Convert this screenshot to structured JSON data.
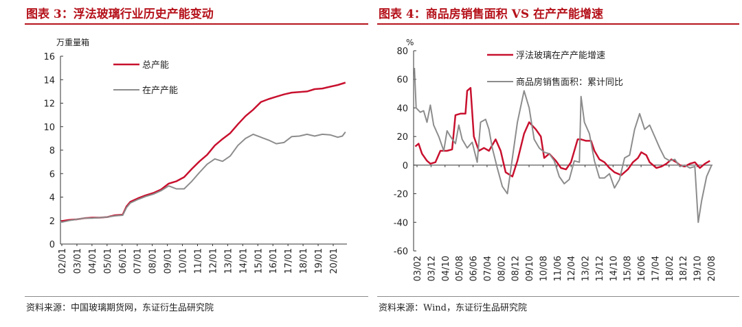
{
  "left": {
    "title": "图表 3：浮法玻璃行业历史产能变动",
    "source": "资料来源：中国玻璃期货网，东证衍生品研究院",
    "chart_data": {
      "type": "line",
      "ylabel": "万重量箱",
      "ylim": [
        0,
        16
      ],
      "yticks": [
        0,
        2,
        4,
        6,
        8,
        10,
        12,
        14,
        16
      ],
      "xlabels": [
        "02/01",
        "03/01",
        "04/01",
        "05/01",
        "06/01",
        "07/01",
        "08/01",
        "09/01",
        "10/01",
        "11/01",
        "12/01",
        "13/01",
        "14/01",
        "15/01",
        "16/01",
        "17/01",
        "18/01",
        "19/01",
        "20/01"
      ],
      "legend_position": "top-left",
      "series": [
        {
          "name": "总产能",
          "color": "#c8102e",
          "points": [
            [
              2002.0,
              1.95
            ],
            [
              2002.5,
              2.05
            ],
            [
              2003.0,
              2.1
            ],
            [
              2003.5,
              2.2
            ],
            [
              2004.0,
              2.25
            ],
            [
              2004.5,
              2.25
            ],
            [
              2005.0,
              2.3
            ],
            [
              2005.5,
              2.45
            ],
            [
              2006.0,
              2.5
            ],
            [
              2006.25,
              3.2
            ],
            [
              2006.5,
              3.6
            ],
            [
              2007.0,
              3.9
            ],
            [
              2007.5,
              4.15
            ],
            [
              2008.0,
              4.35
            ],
            [
              2008.5,
              4.65
            ],
            [
              2009.0,
              5.15
            ],
            [
              2009.5,
              5.35
            ],
            [
              2010.0,
              5.7
            ],
            [
              2010.5,
              6.4
            ],
            [
              2011.0,
              7.05
            ],
            [
              2011.5,
              7.6
            ],
            [
              2012.0,
              8.4
            ],
            [
              2012.5,
              8.95
            ],
            [
              2013.0,
              9.45
            ],
            [
              2013.5,
              10.2
            ],
            [
              2014.0,
              10.9
            ],
            [
              2014.5,
              11.45
            ],
            [
              2015.0,
              12.1
            ],
            [
              2015.5,
              12.35
            ],
            [
              2016.0,
              12.55
            ],
            [
              2016.5,
              12.75
            ],
            [
              2017.0,
              12.9
            ],
            [
              2017.5,
              12.95
            ],
            [
              2018.0,
              13.0
            ],
            [
              2018.5,
              13.2
            ],
            [
              2019.0,
              13.25
            ],
            [
              2019.5,
              13.4
            ],
            [
              2020.0,
              13.55
            ],
            [
              2020.5,
              13.75
            ]
          ]
        },
        {
          "name": "在产产能",
          "color": "#8c8c8c",
          "points": [
            [
              2002.0,
              1.85
            ],
            [
              2002.5,
              2.0
            ],
            [
              2003.0,
              2.1
            ],
            [
              2003.5,
              2.2
            ],
            [
              2004.0,
              2.2
            ],
            [
              2004.5,
              2.25
            ],
            [
              2005.0,
              2.3
            ],
            [
              2005.5,
              2.4
            ],
            [
              2006.0,
              2.45
            ],
            [
              2006.25,
              3.1
            ],
            [
              2006.5,
              3.5
            ],
            [
              2007.0,
              3.8
            ],
            [
              2007.5,
              4.05
            ],
            [
              2008.0,
              4.25
            ],
            [
              2008.5,
              4.55
            ],
            [
              2009.0,
              4.95
            ],
            [
              2009.5,
              4.7
            ],
            [
              2010.0,
              4.7
            ],
            [
              2010.5,
              5.35
            ],
            [
              2011.0,
              6.1
            ],
            [
              2011.5,
              6.8
            ],
            [
              2012.0,
              7.25
            ],
            [
              2012.5,
              7.05
            ],
            [
              2013.0,
              7.5
            ],
            [
              2013.5,
              8.4
            ],
            [
              2014.0,
              9.0
            ],
            [
              2014.5,
              9.35
            ],
            [
              2015.0,
              9.1
            ],
            [
              2015.5,
              8.85
            ],
            [
              2016.0,
              8.55
            ],
            [
              2016.5,
              8.65
            ],
            [
              2017.0,
              9.15
            ],
            [
              2017.5,
              9.2
            ],
            [
              2018.0,
              9.35
            ],
            [
              2018.5,
              9.2
            ],
            [
              2019.0,
              9.35
            ],
            [
              2019.5,
              9.3
            ],
            [
              2020.0,
              9.1
            ],
            [
              2020.3,
              9.2
            ],
            [
              2020.5,
              9.55
            ]
          ]
        }
      ]
    }
  },
  "right": {
    "title": "图表 4：商品房销售面积 VS 在产产能增速",
    "source": "资料来源：Wind，东证衍生品研究院",
    "chart_data": {
      "type": "line",
      "ylabel": "%",
      "ylim": [
        -60,
        80
      ],
      "yticks": [
        -60,
        -40,
        -20,
        0,
        20,
        40,
        60,
        80
      ],
      "xlabels": [
        "03/02",
        "03/12",
        "04/10",
        "05/08",
        "06/06",
        "07/04",
        "08/02",
        "08/12",
        "09/10",
        "10/08",
        "11/06",
        "12/04",
        "13/02",
        "13/12",
        "14/10",
        "15/08",
        "16/06",
        "17/04",
        "18/02",
        "18/12",
        "19/10",
        "20/08"
      ],
      "legend_position": "top-right",
      "series": [
        {
          "name": "浮法玻璃在产产能增速",
          "color": "#c8102e",
          "points": [
            [
              2003.1,
              13
            ],
            [
              2003.3,
              15
            ],
            [
              2003.5,
              8
            ],
            [
              2003.8,
              3
            ],
            [
              2004.0,
              1
            ],
            [
              2004.3,
              2
            ],
            [
              2004.6,
              10
            ],
            [
              2005.0,
              10
            ],
            [
              2005.3,
              11
            ],
            [
              2005.5,
              35
            ],
            [
              2005.8,
              36
            ],
            [
              2006.1,
              36
            ],
            [
              2006.2,
              52
            ],
            [
              2006.4,
              54
            ],
            [
              2006.6,
              20
            ],
            [
              2006.9,
              10
            ],
            [
              2007.2,
              12
            ],
            [
              2007.5,
              10
            ],
            [
              2007.9,
              18
            ],
            [
              2008.2,
              10
            ],
            [
              2008.5,
              -5
            ],
            [
              2008.9,
              -8
            ],
            [
              2009.2,
              3
            ],
            [
              2009.6,
              22
            ],
            [
              2009.9,
              30
            ],
            [
              2010.3,
              25
            ],
            [
              2010.6,
              20
            ],
            [
              2010.8,
              5
            ],
            [
              2011.1,
              8
            ],
            [
              2011.5,
              3
            ],
            [
              2011.8,
              -2
            ],
            [
              2012.1,
              -3
            ],
            [
              2012.4,
              2
            ],
            [
              2012.8,
              18
            ],
            [
              2013.0,
              18
            ],
            [
              2013.3,
              17
            ],
            [
              2013.6,
              17
            ],
            [
              2013.8,
              10
            ],
            [
              2014.1,
              4
            ],
            [
              2014.4,
              2
            ],
            [
              2014.7,
              -2
            ],
            [
              2015.0,
              -5
            ],
            [
              2015.4,
              -7
            ],
            [
              2015.8,
              -3
            ],
            [
              2016.1,
              2
            ],
            [
              2016.4,
              5
            ],
            [
              2016.6,
              9
            ],
            [
              2016.9,
              7
            ],
            [
              2017.1,
              2
            ],
            [
              2017.5,
              -2
            ],
            [
              2017.8,
              -1
            ],
            [
              2018.1,
              1
            ],
            [
              2018.4,
              4
            ],
            [
              2018.7,
              2
            ],
            [
              2018.9,
              0
            ],
            [
              2019.2,
              -1
            ],
            [
              2019.5,
              1
            ],
            [
              2019.8,
              2
            ],
            [
              2020.1,
              -2
            ],
            [
              2020.4,
              1
            ],
            [
              2020.7,
              3
            ]
          ]
        },
        {
          "name": "商品房销售面积：累计同比",
          "color": "#8c8c8c",
          "points": [
            [
              2003.05,
              68
            ],
            [
              2003.15,
              40
            ],
            [
              2003.4,
              37
            ],
            [
              2003.6,
              38
            ],
            [
              2003.8,
              30
            ],
            [
              2004.0,
              42
            ],
            [
              2004.2,
              28
            ],
            [
              2004.5,
              20
            ],
            [
              2004.8,
              10
            ],
            [
              2005.0,
              24
            ],
            [
              2005.2,
              20
            ],
            [
              2005.5,
              15
            ],
            [
              2005.7,
              28
            ],
            [
              2005.9,
              18
            ],
            [
              2006.2,
              12
            ],
            [
              2006.5,
              16
            ],
            [
              2006.8,
              2
            ],
            [
              2007.0,
              30
            ],
            [
              2007.3,
              32
            ],
            [
              2007.5,
              25
            ],
            [
              2007.7,
              12
            ],
            [
              2008.0,
              -2
            ],
            [
              2008.3,
              -15
            ],
            [
              2008.6,
              -20
            ],
            [
              2008.9,
              5
            ],
            [
              2009.2,
              30
            ],
            [
              2009.6,
              52
            ],
            [
              2009.9,
              40
            ],
            [
              2010.2,
              18
            ],
            [
              2010.5,
              12
            ],
            [
              2010.8,
              9
            ],
            [
              2011.1,
              8
            ],
            [
              2011.4,
              3
            ],
            [
              2011.7,
              -8
            ],
            [
              2012.0,
              -13
            ],
            [
              2012.3,
              -10
            ],
            [
              2012.6,
              3
            ],
            [
              2012.9,
              2
            ],
            [
              2013.0,
              48
            ],
            [
              2013.2,
              30
            ],
            [
              2013.5,
              22
            ],
            [
              2013.8,
              3
            ],
            [
              2014.1,
              -9
            ],
            [
              2014.4,
              -9
            ],
            [
              2014.7,
              -6
            ],
            [
              2015.0,
              -16
            ],
            [
              2015.3,
              -10
            ],
            [
              2015.6,
              5
            ],
            [
              2015.9,
              7
            ],
            [
              2016.2,
              25
            ],
            [
              2016.5,
              36
            ],
            [
              2016.8,
              25
            ],
            [
              2017.1,
              28
            ],
            [
              2017.4,
              20
            ],
            [
              2017.7,
              12
            ],
            [
              2018.0,
              5
            ],
            [
              2018.3,
              3
            ],
            [
              2018.6,
              4
            ],
            [
              2018.9,
              -1
            ],
            [
              2019.2,
              0
            ],
            [
              2019.5,
              -2
            ],
            [
              2019.8,
              -1
            ],
            [
              2020.0,
              -40
            ],
            [
              2020.2,
              -25
            ],
            [
              2020.5,
              -8
            ],
            [
              2020.8,
              0
            ]
          ]
        }
      ]
    }
  }
}
